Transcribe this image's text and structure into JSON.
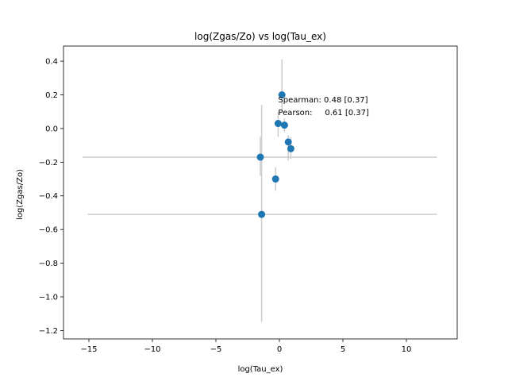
{
  "chart_data": {
    "type": "scatter",
    "title": "log(Zgas/Zo) vs log(Tau_ex)",
    "xlabel": "log(Tau_ex)",
    "ylabel": "log(Zgas/Zo)",
    "xlim": [
      -17,
      14
    ],
    "ylim": [
      -1.25,
      0.49
    ],
    "xticks": [
      -15,
      -10,
      -5,
      0,
      5,
      10
    ],
    "yticks": [
      -1.2,
      -1.0,
      -0.8,
      -0.6,
      -0.4,
      -0.2,
      0.0,
      0.2,
      0.4
    ],
    "xtick_labels": [
      "−15",
      "−10",
      "−5",
      "0",
      "5",
      "10"
    ],
    "ytick_labels": [
      "−1.2",
      "−1.0",
      "−0.8",
      "−0.6",
      "−0.4",
      "−0.2",
      "0.0",
      "0.2",
      "0.4"
    ],
    "grid": false,
    "point_color": "#1f77b4",
    "errorbar_color": "#cccccc",
    "points": [
      {
        "x": 0.2,
        "y": 0.2,
        "xerr": [
          0.2,
          0.2
        ],
        "yerr": [
          0.09,
          0.21
        ]
      },
      {
        "x": -0.1,
        "y": 0.03,
        "xerr": [
          0.1,
          0.1
        ],
        "yerr": [
          0.08,
          0.07
        ]
      },
      {
        "x": 0.4,
        "y": 0.02,
        "xerr": [
          0.3,
          0.3
        ],
        "yerr": [
          0.04,
          0.04
        ]
      },
      {
        "x": 0.7,
        "y": -0.08,
        "xerr": [
          0.2,
          0.2
        ],
        "yerr": [
          0.11,
          0.04
        ]
      },
      {
        "x": 0.9,
        "y": -0.12,
        "xerr": [
          0.2,
          0.2
        ],
        "yerr": [
          0.06,
          0.07
        ]
      },
      {
        "x": -1.5,
        "y": -0.17,
        "xerr": [
          14.0,
          13.9
        ],
        "yerr": [
          0.11,
          0.12
        ]
      },
      {
        "x": -0.3,
        "y": -0.3,
        "xerr": [
          0.1,
          0.1
        ],
        "yerr": [
          0.07,
          0.07
        ]
      },
      {
        "x": -1.4,
        "y": -0.51,
        "xerr": [
          13.7,
          13.8
        ],
        "yerr": [
          0.64,
          0.65
        ]
      }
    ],
    "annotations": [
      {
        "text": "Spearman: 0.48 [0.37]",
        "x": -0.1,
        "y": 0.155
      },
      {
        "text": "Pearson:     0.61 [0.37]",
        "x": -0.1,
        "y": 0.08
      }
    ]
  }
}
